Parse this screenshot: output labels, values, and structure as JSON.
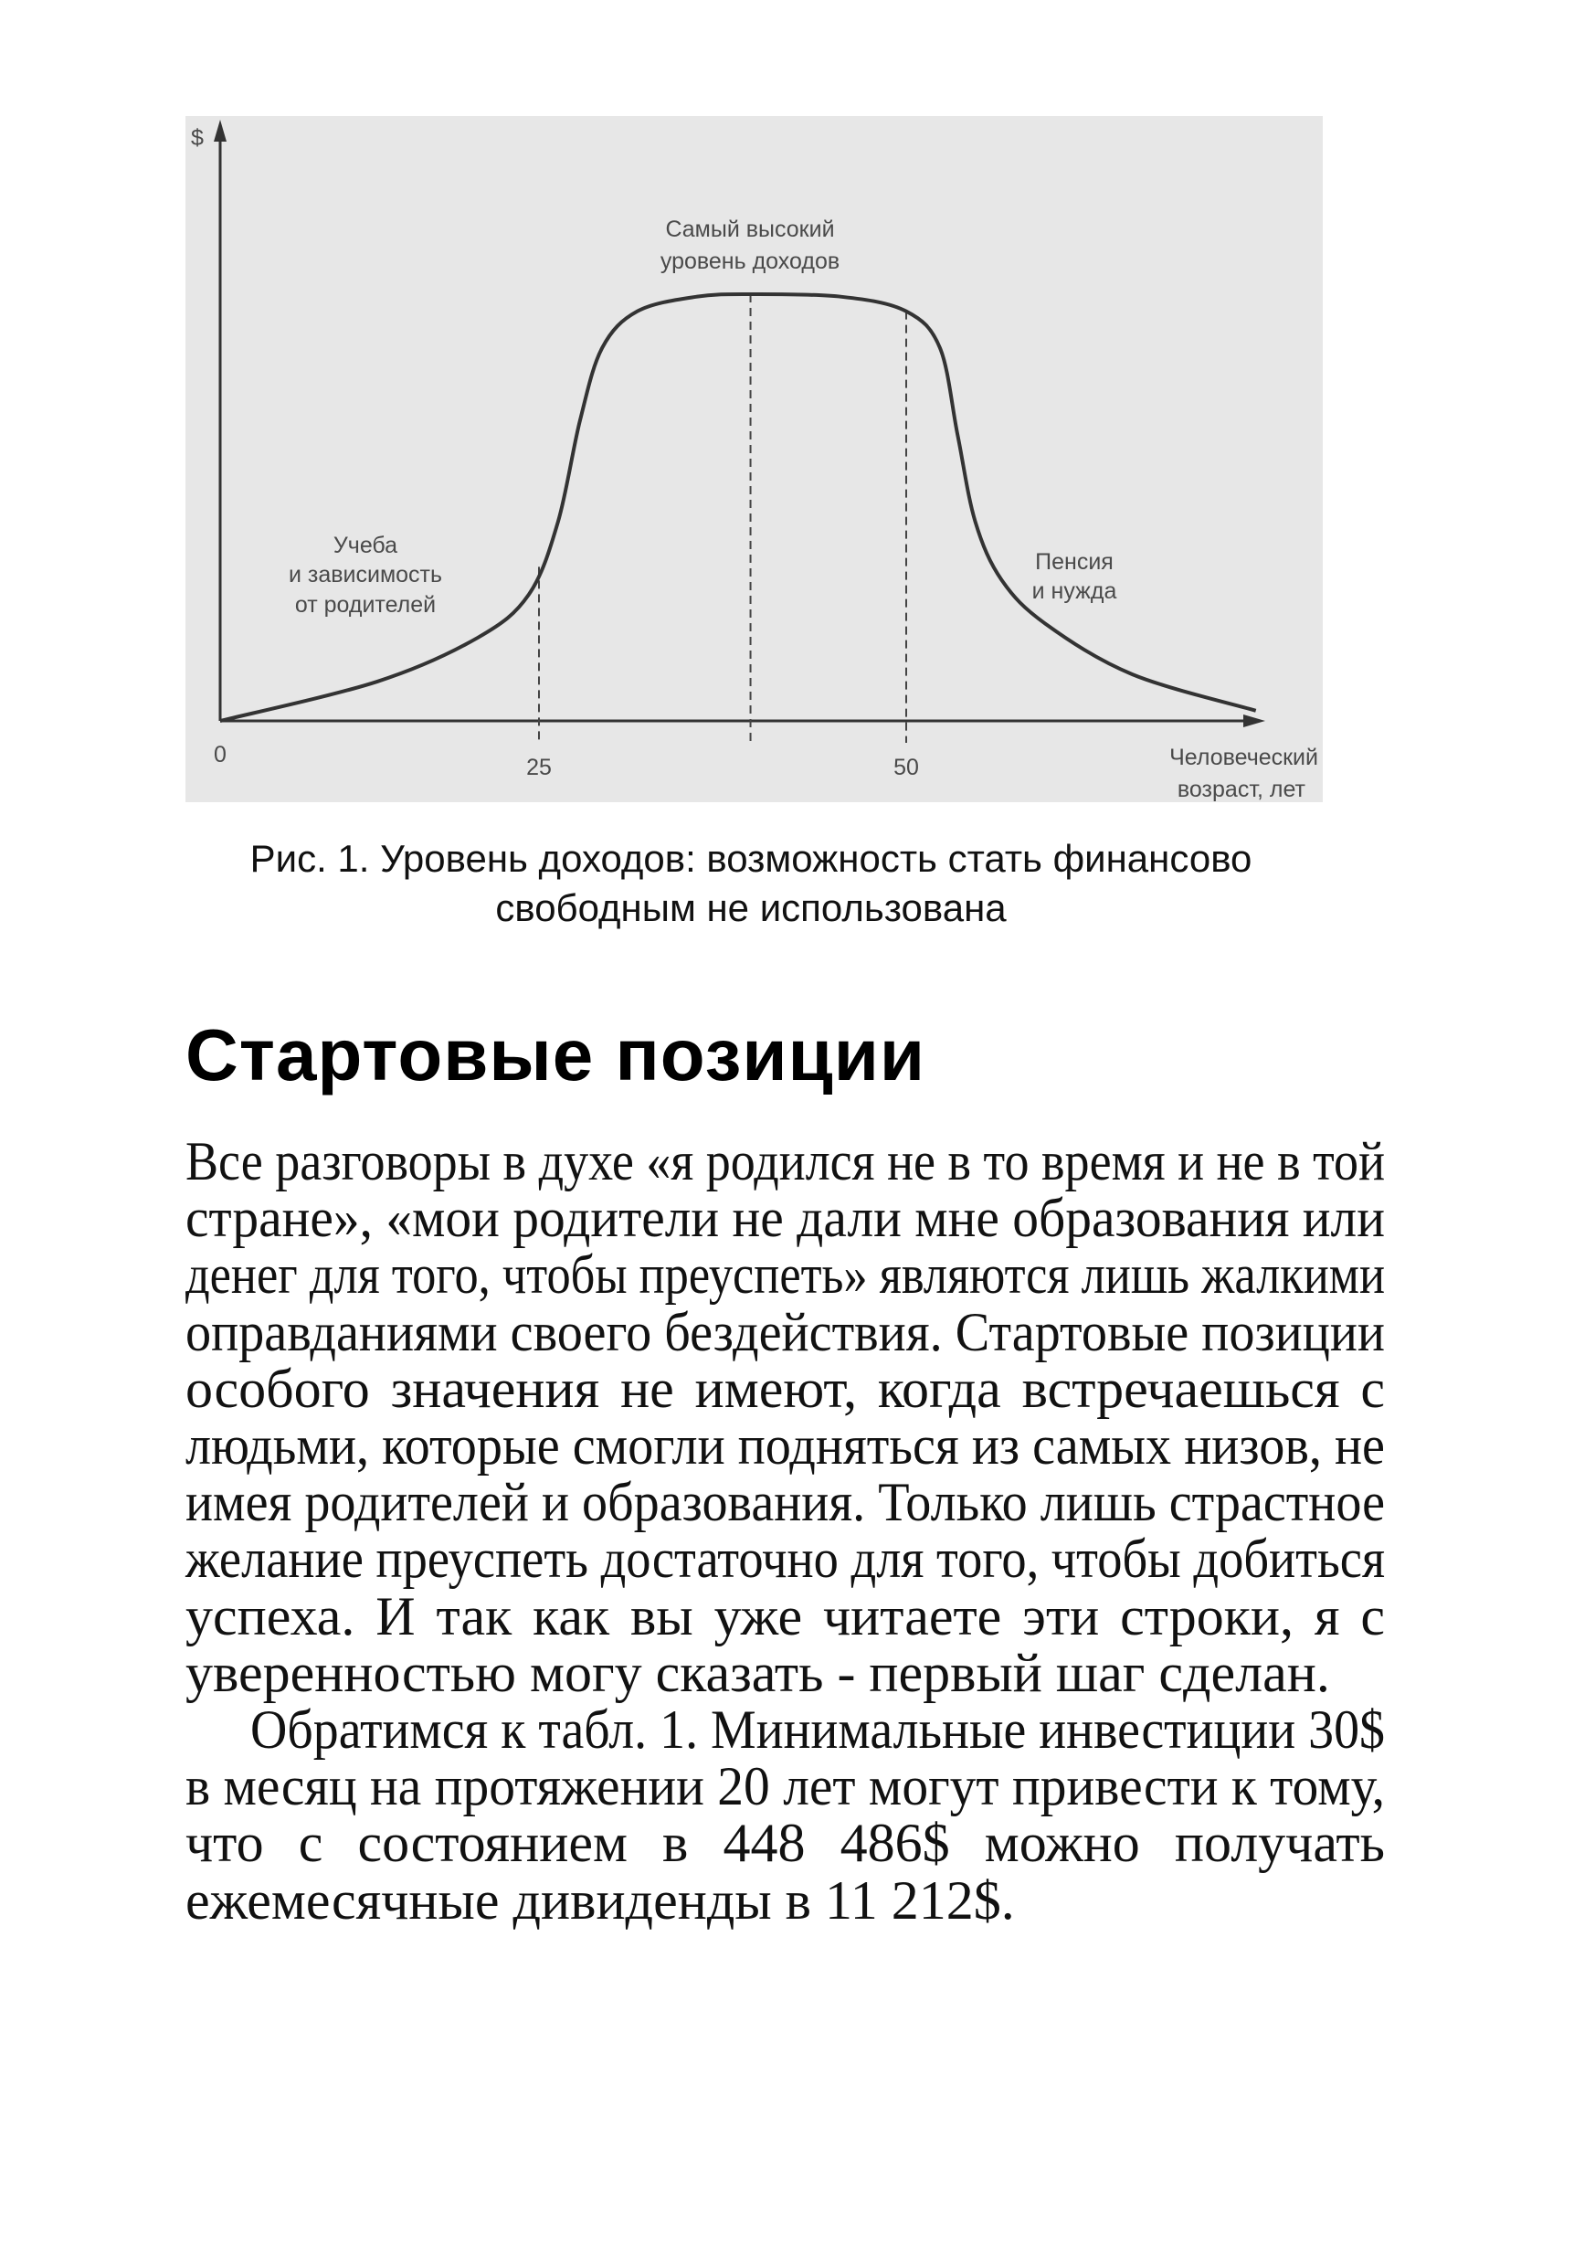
{
  "figure": {
    "colors": {
      "background": "#e7e7e7",
      "curve": "#333333",
      "text": "#4a4a4a"
    },
    "chart_data": {
      "type": "line",
      "ylabel": "$",
      "xlabel": [
        "Человеческий",
        "возраст, лет"
      ],
      "x_ticks": [
        "0",
        "25",
        "50"
      ],
      "y_ticks": [],
      "grid": false,
      "x": [
        0,
        12.3,
        20.2,
        24.2,
        26.3,
        27.8,
        29.3,
        31.7,
        35.7,
        39.4,
        45.6,
        50,
        52.3,
        53.5,
        54.7,
        56.5,
        59.5,
        65.4,
        73.8
      ],
      "y": [
        0,
        9.2,
        19.5,
        29.6,
        46.7,
        70.5,
        87.4,
        96,
        99.4,
        100,
        99.4,
        96,
        87.4,
        67,
        46.7,
        33,
        22.7,
        10.9,
        2.4
      ],
      "reference_lines_x": [
        25,
        39.4,
        50
      ],
      "annotations": {
        "peak": [
          "Самый высокий",
          "уровень доходов"
        ],
        "study": [
          "Учеба",
          "и зависимость",
          "от родителей"
        ],
        "retirement": [
          "Пенсия",
          "и нужда"
        ]
      }
    }
  },
  "caption": [
    "Рис. 1. Уровень доходов: возможность стать финансово",
    "свободным не использована"
  ],
  "heading": "Стартовые позиции",
  "body": {
    "paragraphs": [
      [
        "Все разговоры в духе «я родился не в то время и не в той",
        "стране», «мои родители не дали мне образования или",
        "денег для того, чтобы преуспеть» являются лишь жалкими",
        "оправданиями своего бездействия. Стартовые позиции",
        "особого значения не имеют, когда встречаешься с",
        "людьми, которые смогли подняться из самых низов, не",
        "имея родителей и образования. Только лишь страстное",
        "желание преуспеть достаточно для того, чтобы добиться",
        "успеха. И так как вы уже читаете эти строки, я с",
        "уверенностью могу сказать - первый шаг сделан."
      ],
      [
        "Обратимся к табл. 1. Минимальные инвестиции 30$",
        "в месяц на протяжении 20 лет могут привести к тому,",
        "что с состоянием в 448 486$ можно получать",
        "ежемесячные дивиденды в 11 212$."
      ]
    ]
  }
}
